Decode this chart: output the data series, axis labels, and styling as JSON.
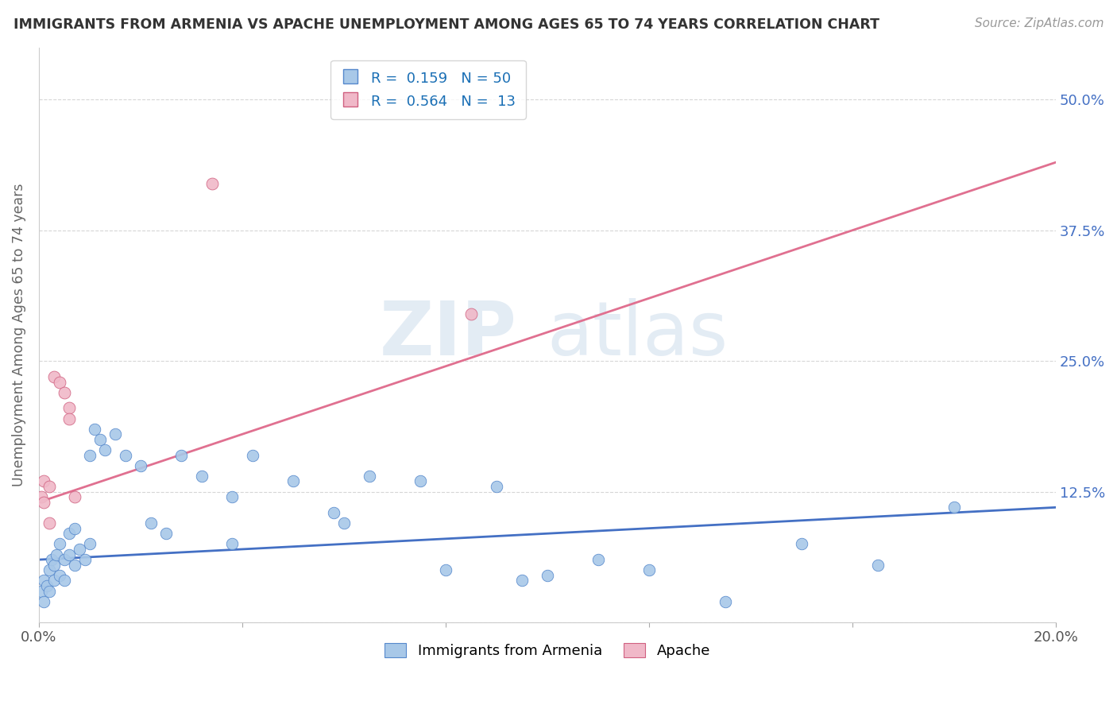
{
  "title": "IMMIGRANTS FROM ARMENIA VS APACHE UNEMPLOYMENT AMONG AGES 65 TO 74 YEARS CORRELATION CHART",
  "source": "Source: ZipAtlas.com",
  "ylabel": "Unemployment Among Ages 65 to 74 years",
  "xlim": [
    0.0,
    0.2
  ],
  "ylim": [
    0.0,
    0.55
  ],
  "x_tick_positions": [
    0.0,
    0.04,
    0.08,
    0.12,
    0.16,
    0.2
  ],
  "x_tick_labels": [
    "0.0%",
    "",
    "",
    "",
    "",
    "20.0%"
  ],
  "y_tick_positions": [
    0.0,
    0.125,
    0.25,
    0.375,
    0.5
  ],
  "y_tick_labels_right": [
    "",
    "12.5%",
    "25.0%",
    "37.5%",
    "50.0%"
  ],
  "blue_R": 0.159,
  "blue_N": 50,
  "pink_R": 0.564,
  "pink_N": 13,
  "blue_dot_color": "#a8c8e8",
  "blue_edge_color": "#5588cc",
  "pink_dot_color": "#f0b8c8",
  "pink_edge_color": "#d06080",
  "blue_line_color": "#4470c4",
  "pink_line_color": "#e07090",
  "grid_color": "#cccccc",
  "background_color": "#ffffff",
  "title_color": "#333333",
  "source_color": "#999999",
  "axis_label_color": "#666666",
  "tick_label_color_right": "#4470c4",
  "watermark_color": "#d8e4f0",
  "blue_x": [
    0.0005,
    0.001,
    0.001,
    0.0015,
    0.002,
    0.002,
    0.0025,
    0.003,
    0.003,
    0.0035,
    0.004,
    0.004,
    0.005,
    0.005,
    0.006,
    0.006,
    0.007,
    0.007,
    0.008,
    0.009,
    0.01,
    0.01,
    0.011,
    0.012,
    0.013,
    0.015,
    0.017,
    0.02,
    0.022,
    0.025,
    0.028,
    0.032,
    0.038,
    0.042,
    0.05,
    0.058,
    0.065,
    0.075,
    0.09,
    0.1,
    0.11,
    0.12,
    0.135,
    0.15,
    0.165,
    0.18,
    0.038,
    0.06,
    0.08,
    0.095
  ],
  "blue_y": [
    0.03,
    0.02,
    0.04,
    0.035,
    0.05,
    0.03,
    0.06,
    0.055,
    0.04,
    0.065,
    0.045,
    0.075,
    0.06,
    0.04,
    0.065,
    0.085,
    0.055,
    0.09,
    0.07,
    0.06,
    0.16,
    0.075,
    0.185,
    0.175,
    0.165,
    0.18,
    0.16,
    0.15,
    0.095,
    0.085,
    0.16,
    0.14,
    0.12,
    0.16,
    0.135,
    0.105,
    0.14,
    0.135,
    0.13,
    0.045,
    0.06,
    0.05,
    0.02,
    0.075,
    0.055,
    0.11,
    0.075,
    0.095,
    0.05,
    0.04
  ],
  "pink_x": [
    0.0005,
    0.001,
    0.001,
    0.002,
    0.002,
    0.003,
    0.004,
    0.005,
    0.006,
    0.006,
    0.034,
    0.085,
    0.007
  ],
  "pink_y": [
    0.12,
    0.115,
    0.135,
    0.13,
    0.095,
    0.235,
    0.23,
    0.22,
    0.205,
    0.195,
    0.42,
    0.295,
    0.12
  ],
  "blue_line_x": [
    0.0,
    0.2
  ],
  "blue_line_y": [
    0.06,
    0.11
  ],
  "pink_line_x": [
    0.0,
    0.2
  ],
  "pink_line_y": [
    0.115,
    0.44
  ]
}
